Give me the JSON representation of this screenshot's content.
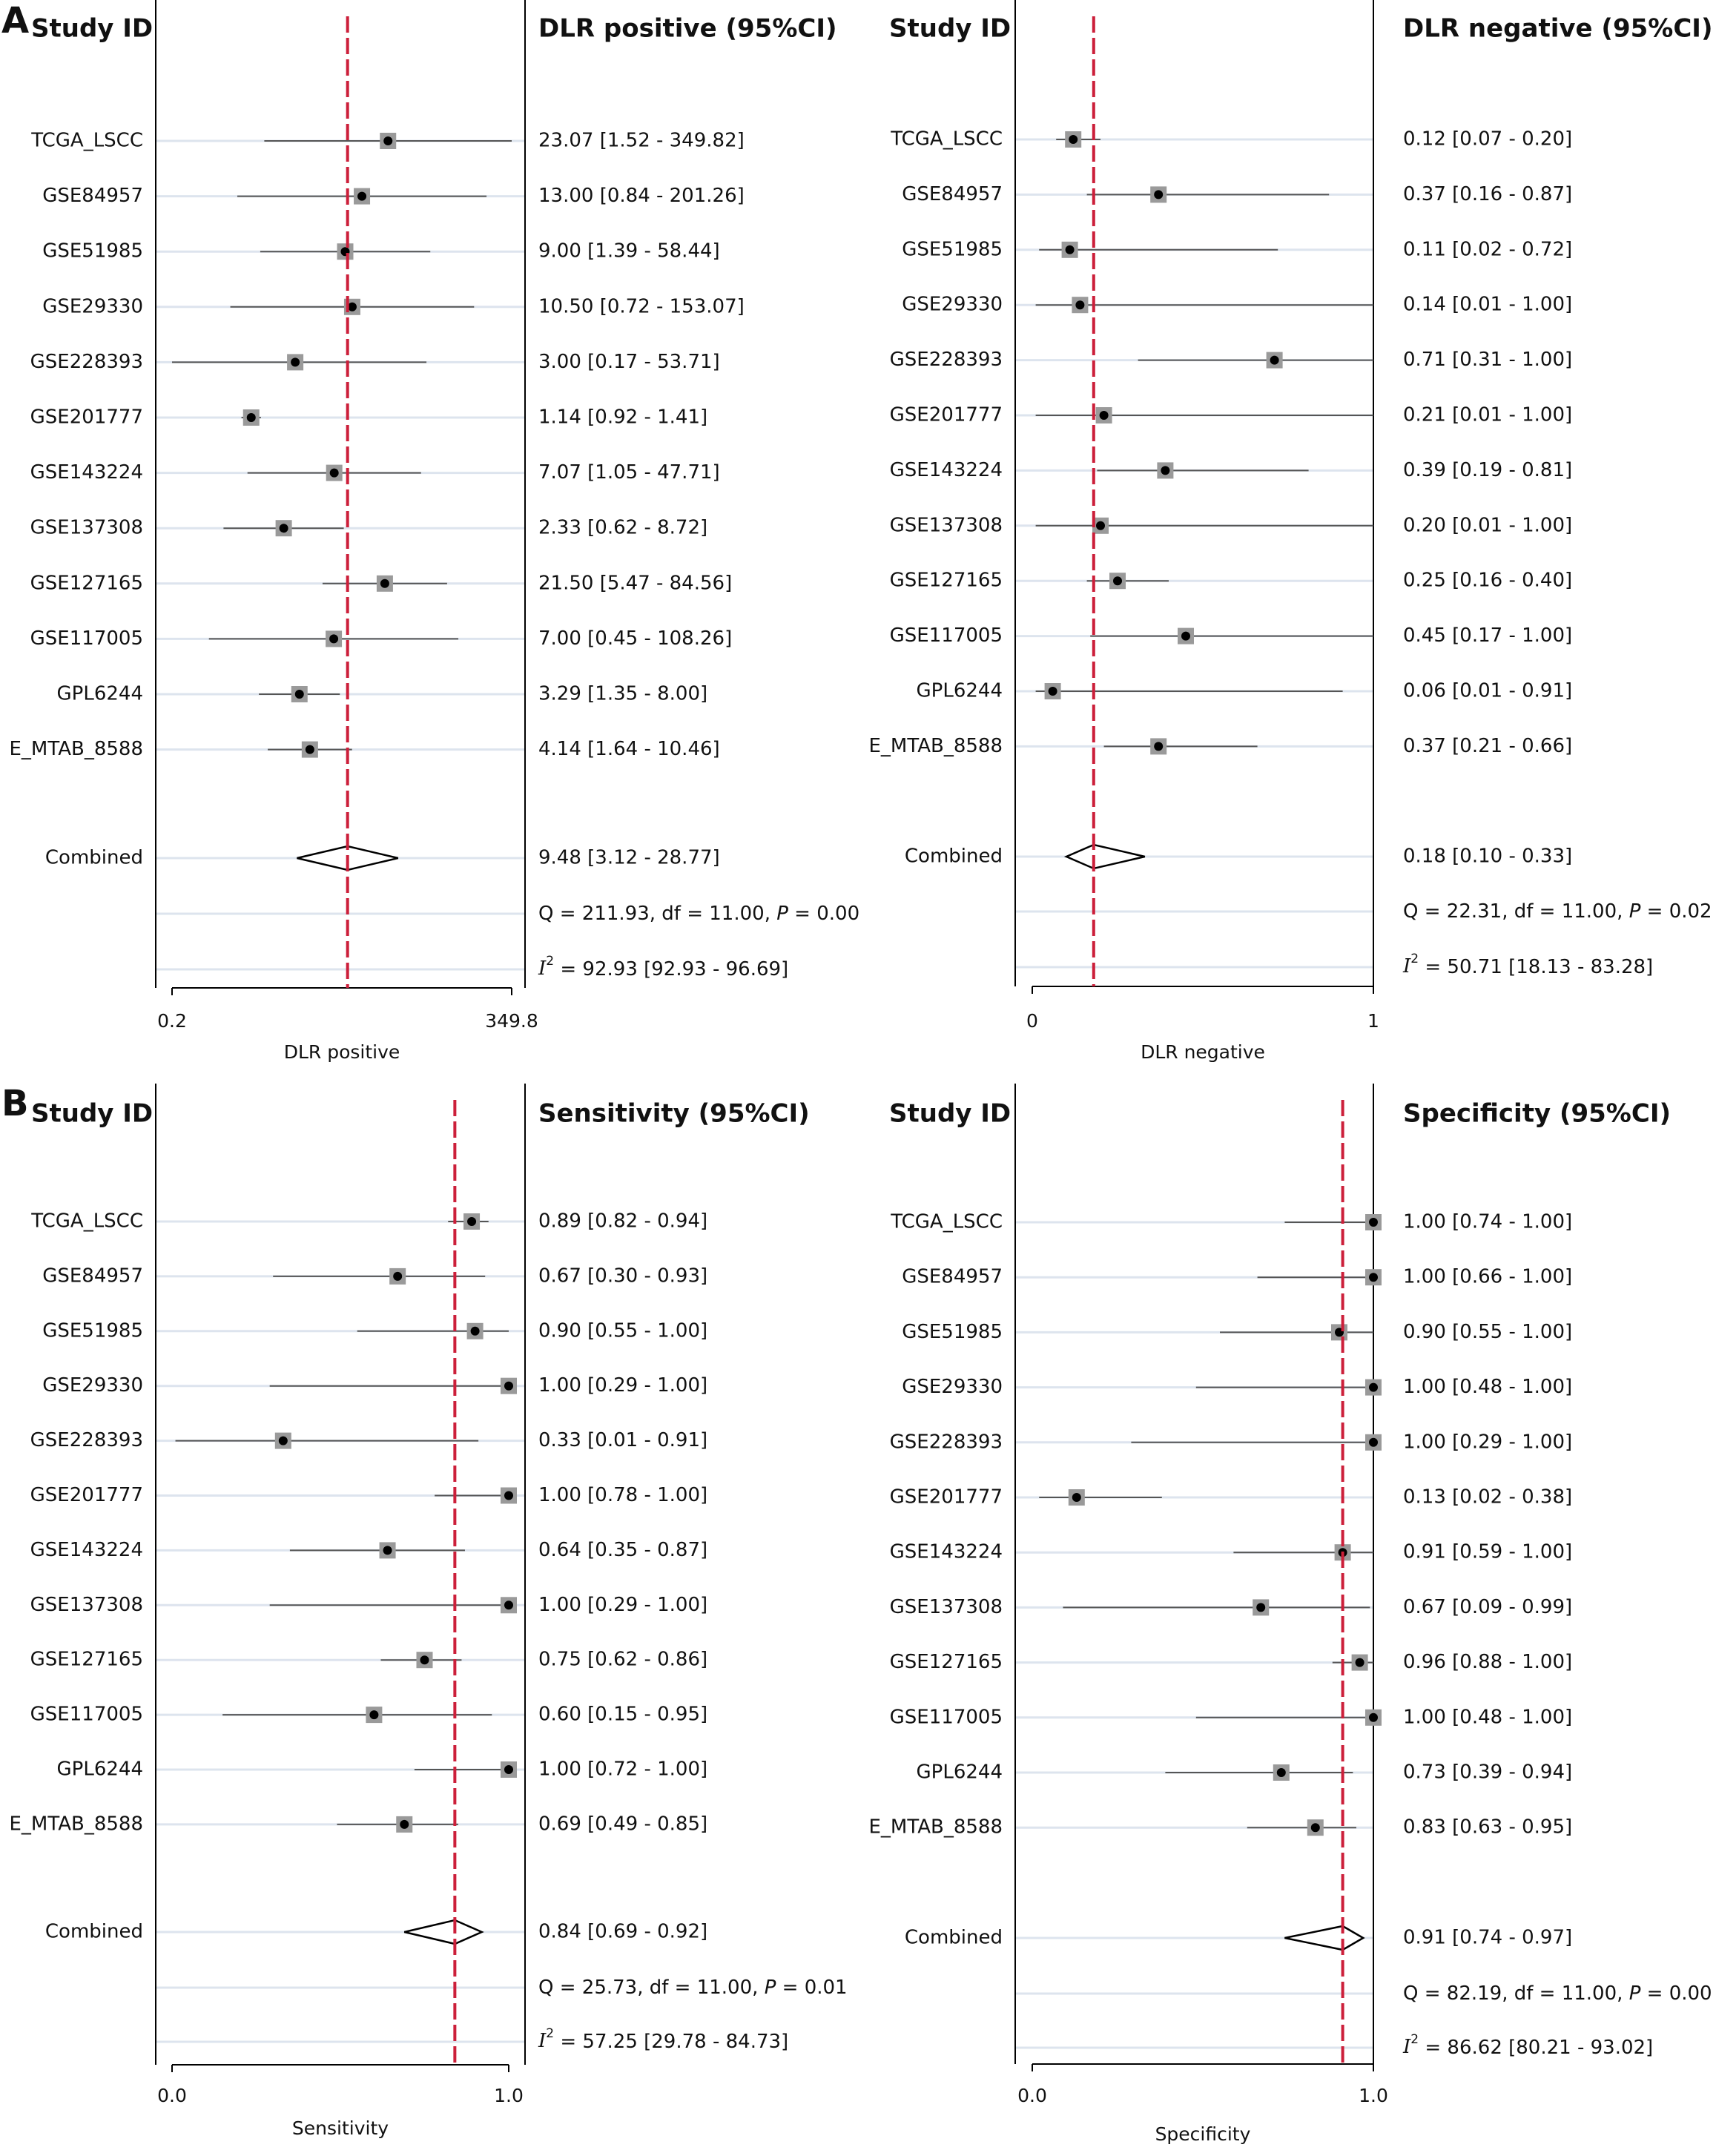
{
  "panel_labels": [
    "A",
    "B"
  ],
  "colors": {
    "ref_line": "#cc1f3a",
    "marker_box": "#9a9a9a",
    "row_line": "#dde4ee",
    "axis": "#000000"
  },
  "chart_data": [
    {
      "type": "forest",
      "panel": "A",
      "header_left": "Study ID",
      "header_right": "DLR positive (95%CI)",
      "xlabel": "DLR positive",
      "x_ticks": [
        "0.2",
        "349.8"
      ],
      "scale": "log",
      "xlim": [
        0.2,
        349.8
      ],
      "reference_line": 9.48,
      "studies": [
        {
          "id": "TCGA_LSCC",
          "est": 23.07,
          "lo": 1.52,
          "hi": 349.82,
          "label": "23.07 [1.52 - 349.82]"
        },
        {
          "id": "GSE84957",
          "est": 13.0,
          "lo": 0.84,
          "hi": 201.26,
          "label": "13.00 [0.84 - 201.26]"
        },
        {
          "id": "GSE51985",
          "est": 9.0,
          "lo": 1.39,
          "hi": 58.44,
          "label": "9.00 [1.39 - 58.44]"
        },
        {
          "id": "GSE29330",
          "est": 10.5,
          "lo": 0.72,
          "hi": 153.07,
          "label": "10.50 [0.72 - 153.07]"
        },
        {
          "id": "GSE228393",
          "est": 3.0,
          "lo": 0.17,
          "hi": 53.71,
          "label": "3.00 [0.17 - 53.71]"
        },
        {
          "id": "GSE201777",
          "est": 1.14,
          "lo": 0.92,
          "hi": 1.41,
          "label": "1.14 [0.92 - 1.41]"
        },
        {
          "id": "GSE143224",
          "est": 7.07,
          "lo": 1.05,
          "hi": 47.71,
          "label": "7.07 [1.05 - 47.71]"
        },
        {
          "id": "GSE137308",
          "est": 2.33,
          "lo": 0.62,
          "hi": 8.72,
          "label": "2.33 [0.62 - 8.72]"
        },
        {
          "id": "GSE127165",
          "est": 21.5,
          "lo": 5.47,
          "hi": 84.56,
          "label": "21.50 [5.47 - 84.56]"
        },
        {
          "id": "GSE117005",
          "est": 7.0,
          "lo": 0.45,
          "hi": 108.26,
          "label": "7.00 [0.45 - 108.26]"
        },
        {
          "id": "GPL6244",
          "est": 3.29,
          "lo": 1.35,
          "hi": 8.0,
          "label": "3.29 [1.35 - 8.00]"
        },
        {
          "id": "E_MTAB_8588",
          "est": 4.14,
          "lo": 1.64,
          "hi": 10.46,
          "label": "4.14 [1.64 - 10.46]"
        }
      ],
      "combined": {
        "id": "Combined",
        "est": 9.48,
        "lo": 3.12,
        "hi": 28.77,
        "label": "9.48 [3.12 - 28.77]"
      },
      "q_text": "Q = 211.93, df = 11.00, ",
      "p_text": " = 0.00",
      "i2_text": " = 92.93 [92.93 - 96.69]"
    },
    {
      "type": "forest",
      "panel": "A",
      "header_left": "Study ID",
      "header_right": "DLR negative (95%CI)",
      "xlabel": "DLR negative",
      "x_ticks": [
        "0",
        "1"
      ],
      "scale": "linear",
      "xlim": [
        0,
        1
      ],
      "reference_line": 0.18,
      "studies": [
        {
          "id": "TCGA_LSCC",
          "est": 0.12,
          "lo": 0.07,
          "hi": 0.2,
          "label": "0.12 [0.07 - 0.20]"
        },
        {
          "id": "GSE84957",
          "est": 0.37,
          "lo": 0.16,
          "hi": 0.87,
          "label": "0.37 [0.16 - 0.87]"
        },
        {
          "id": "GSE51985",
          "est": 0.11,
          "lo": 0.02,
          "hi": 0.72,
          "label": "0.11 [0.02 - 0.72]"
        },
        {
          "id": "GSE29330",
          "est": 0.14,
          "lo": 0.01,
          "hi": 1.0,
          "label": "0.14 [0.01 - 1.00]"
        },
        {
          "id": "GSE228393",
          "est": 0.71,
          "lo": 0.31,
          "hi": 1.0,
          "label": "0.71 [0.31 - 1.00]"
        },
        {
          "id": "GSE201777",
          "est": 0.21,
          "lo": 0.01,
          "hi": 1.0,
          "label": "0.21 [0.01 - 1.00]"
        },
        {
          "id": "GSE143224",
          "est": 0.39,
          "lo": 0.19,
          "hi": 0.81,
          "label": "0.39 [0.19 - 0.81]"
        },
        {
          "id": "GSE137308",
          "est": 0.2,
          "lo": 0.01,
          "hi": 1.0,
          "label": "0.20 [0.01 - 1.00]"
        },
        {
          "id": "GSE127165",
          "est": 0.25,
          "lo": 0.16,
          "hi": 0.4,
          "label": "0.25 [0.16 - 0.40]"
        },
        {
          "id": "GSE117005",
          "est": 0.45,
          "lo": 0.17,
          "hi": 1.0,
          "label": "0.45 [0.17 - 1.00]"
        },
        {
          "id": "GPL6244",
          "est": 0.06,
          "lo": 0.01,
          "hi": 0.91,
          "label": "0.06 [0.01 - 0.91]"
        },
        {
          "id": "E_MTAB_8588",
          "est": 0.37,
          "lo": 0.21,
          "hi": 0.66,
          "label": "0.37 [0.21 - 0.66]"
        }
      ],
      "combined": {
        "id": "Combined",
        "est": 0.18,
        "lo": 0.1,
        "hi": 0.33,
        "label": "0.18 [0.10 - 0.33]"
      },
      "q_text": "Q = 22.31, df = 11.00, ",
      "p_text": " = 0.02",
      "i2_text": " = 50.71 [18.13 - 83.28]"
    },
    {
      "type": "forest",
      "panel": "B",
      "header_left": "Study ID",
      "header_right": "Sensitivity (95%CI)",
      "xlabel": "Sensitivity",
      "x_ticks": [
        "0.0",
        "1.0"
      ],
      "scale": "linear",
      "xlim": [
        0,
        1
      ],
      "reference_line": 0.84,
      "studies": [
        {
          "id": "TCGA_LSCC",
          "est": 0.89,
          "lo": 0.82,
          "hi": 0.94,
          "label": "0.89 [0.82 - 0.94]"
        },
        {
          "id": "GSE84957",
          "est": 0.67,
          "lo": 0.3,
          "hi": 0.93,
          "label": "0.67 [0.30 - 0.93]"
        },
        {
          "id": "GSE51985",
          "est": 0.9,
          "lo": 0.55,
          "hi": 1.0,
          "label": "0.90 [0.55 - 1.00]"
        },
        {
          "id": "GSE29330",
          "est": 1.0,
          "lo": 0.29,
          "hi": 1.0,
          "label": "1.00 [0.29 - 1.00]"
        },
        {
          "id": "GSE228393",
          "est": 0.33,
          "lo": 0.01,
          "hi": 0.91,
          "label": "0.33 [0.01 - 0.91]"
        },
        {
          "id": "GSE201777",
          "est": 1.0,
          "lo": 0.78,
          "hi": 1.0,
          "label": "1.00 [0.78 - 1.00]"
        },
        {
          "id": "GSE143224",
          "est": 0.64,
          "lo": 0.35,
          "hi": 0.87,
          "label": "0.64 [0.35 - 0.87]"
        },
        {
          "id": "GSE137308",
          "est": 1.0,
          "lo": 0.29,
          "hi": 1.0,
          "label": "1.00 [0.29 - 1.00]"
        },
        {
          "id": "GSE127165",
          "est": 0.75,
          "lo": 0.62,
          "hi": 0.86,
          "label": "0.75 [0.62 - 0.86]"
        },
        {
          "id": "GSE117005",
          "est": 0.6,
          "lo": 0.15,
          "hi": 0.95,
          "label": "0.60 [0.15 - 0.95]"
        },
        {
          "id": "GPL6244",
          "est": 1.0,
          "lo": 0.72,
          "hi": 1.0,
          "label": "1.00 [0.72 - 1.00]"
        },
        {
          "id": "E_MTAB_8588",
          "est": 0.69,
          "lo": 0.49,
          "hi": 0.85,
          "label": "0.69 [0.49 - 0.85]"
        }
      ],
      "combined": {
        "id": "Combined",
        "est": 0.84,
        "lo": 0.69,
        "hi": 0.92,
        "label": "0.84 [0.69 - 0.92]"
      },
      "q_text": "Q = 25.73, df = 11.00, ",
      "p_text": " = 0.01",
      "i2_text": " = 57.25 [29.78 - 84.73]"
    },
    {
      "type": "forest",
      "panel": "B",
      "header_left": "Study ID",
      "header_right": "Specificity (95%CI)",
      "xlabel": "Specificity",
      "x_ticks": [
        "0.0",
        "1.0"
      ],
      "scale": "linear",
      "xlim": [
        0,
        1
      ],
      "reference_line": 0.91,
      "studies": [
        {
          "id": "TCGA_LSCC",
          "est": 1.0,
          "lo": 0.74,
          "hi": 1.0,
          "label": "1.00 [0.74 - 1.00]"
        },
        {
          "id": "GSE84957",
          "est": 1.0,
          "lo": 0.66,
          "hi": 1.0,
          "label": "1.00 [0.66 - 1.00]"
        },
        {
          "id": "GSE51985",
          "est": 0.9,
          "lo": 0.55,
          "hi": 1.0,
          "label": "0.90 [0.55 - 1.00]"
        },
        {
          "id": "GSE29330",
          "est": 1.0,
          "lo": 0.48,
          "hi": 1.0,
          "label": "1.00 [0.48 - 1.00]"
        },
        {
          "id": "GSE228393",
          "est": 1.0,
          "lo": 0.29,
          "hi": 1.0,
          "label": "1.00 [0.29 - 1.00]"
        },
        {
          "id": "GSE201777",
          "est": 0.13,
          "lo": 0.02,
          "hi": 0.38,
          "label": "0.13 [0.02 - 0.38]"
        },
        {
          "id": "GSE143224",
          "est": 0.91,
          "lo": 0.59,
          "hi": 1.0,
          "label": "0.91 [0.59 - 1.00]"
        },
        {
          "id": "GSE137308",
          "est": 0.67,
          "lo": 0.09,
          "hi": 0.99,
          "label": "0.67 [0.09 - 0.99]"
        },
        {
          "id": "GSE127165",
          "est": 0.96,
          "lo": 0.88,
          "hi": 1.0,
          "label": "0.96 [0.88 - 1.00]"
        },
        {
          "id": "GSE117005",
          "est": 1.0,
          "lo": 0.48,
          "hi": 1.0,
          "label": "1.00 [0.48 - 1.00]"
        },
        {
          "id": "GPL6244",
          "est": 0.73,
          "lo": 0.39,
          "hi": 0.94,
          "label": "0.73 [0.39 - 0.94]"
        },
        {
          "id": "E_MTAB_8588",
          "est": 0.83,
          "lo": 0.63,
          "hi": 0.95,
          "label": "0.83 [0.63 - 0.95]"
        }
      ],
      "combined": {
        "id": "Combined",
        "est": 0.91,
        "lo": 0.74,
        "hi": 0.97,
        "label": "0.91 [0.74 - 0.97]"
      },
      "q_text": "Q = 82.19, df = 11.00, ",
      "p_text": " = 0.00",
      "i2_text": " = 86.62 [80.21 - 93.02]"
    }
  ]
}
